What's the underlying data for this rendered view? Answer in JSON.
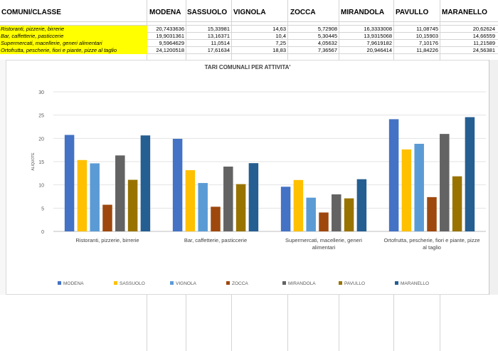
{
  "table": {
    "header_first": "COMUNI/CLASSE",
    "columns": [
      "MODENA",
      "SASSUOLO",
      "VIGNOLA",
      "ZOCCA",
      "MIRANDOLA",
      "PAVULLO",
      "MARANELLO"
    ],
    "rows": [
      {
        "label": "Ristoranti, pizzerie, birrerie",
        "values": [
          "20,7433636",
          "15,33981",
          "14,63",
          "5,72908",
          "16,3333008",
          "11,08745",
          "20,62624"
        ]
      },
      {
        "label": "Bar, caffetterie, pasticcerie",
        "values": [
          "19,9031361",
          "13,16371",
          "10,4",
          "5,30445",
          "13,9315068",
          "10,15903",
          "14,66559"
        ]
      },
      {
        "label": "Supermercati, macellerie, generi alimentari",
        "values": [
          "9,5964629",
          "11,0514",
          "7,25",
          "4,05632",
          "7,9619182",
          "7,10176",
          "11,21589"
        ]
      },
      {
        "label": "Ortofrutta, pescherie, fiori e piante, pizze al taglio",
        "values": [
          "24,1200518",
          "17,61634",
          "18,83",
          "7,36567",
          "20,946414",
          "11,84226",
          "24,56381"
        ]
      }
    ]
  },
  "chart_data": {
    "type": "bar",
    "title": "TARI COMUNALI PER ATTIVITA'",
    "ylabel": "ALIQUOTE",
    "xlabel": "",
    "ylim": [
      0,
      30
    ],
    "yticks": [
      0,
      5,
      10,
      15,
      20,
      25,
      30
    ],
    "grid": true,
    "legend": "bottom",
    "categories": [
      [
        "Ristoranti, pizzerie, birrerie"
      ],
      [
        "Bar, caffetterie, pasticcerie"
      ],
      [
        "Supermercati, macellerie, generi",
        "alimentari"
      ],
      [
        "Ortofrutta, pescherie, fiori e piante, pizze",
        "al taglio"
      ]
    ],
    "series": [
      {
        "name": "MODENA",
        "color": "#4472c4",
        "values": [
          20.74,
          19.9,
          9.6,
          24.12
        ]
      },
      {
        "name": "SASSUOLO",
        "color": "#ffc000",
        "values": [
          15.34,
          13.16,
          11.05,
          17.62
        ]
      },
      {
        "name": "VIGNOLA",
        "color": "#5b9bd5",
        "values": [
          14.63,
          10.4,
          7.25,
          18.83
        ]
      },
      {
        "name": "ZOCCA",
        "color": "#9e480e",
        "values": [
          5.73,
          5.3,
          4.06,
          7.37
        ]
      },
      {
        "name": "MIRANDOLA",
        "color": "#636363",
        "values": [
          16.33,
          13.93,
          7.96,
          20.95
        ]
      },
      {
        "name": "PAVULLO",
        "color": "#997300",
        "values": [
          11.09,
          10.16,
          7.1,
          11.84
        ]
      },
      {
        "name": "MARANELLO",
        "color": "#255e91",
        "values": [
          20.63,
          14.67,
          11.22,
          24.56
        ]
      }
    ]
  }
}
